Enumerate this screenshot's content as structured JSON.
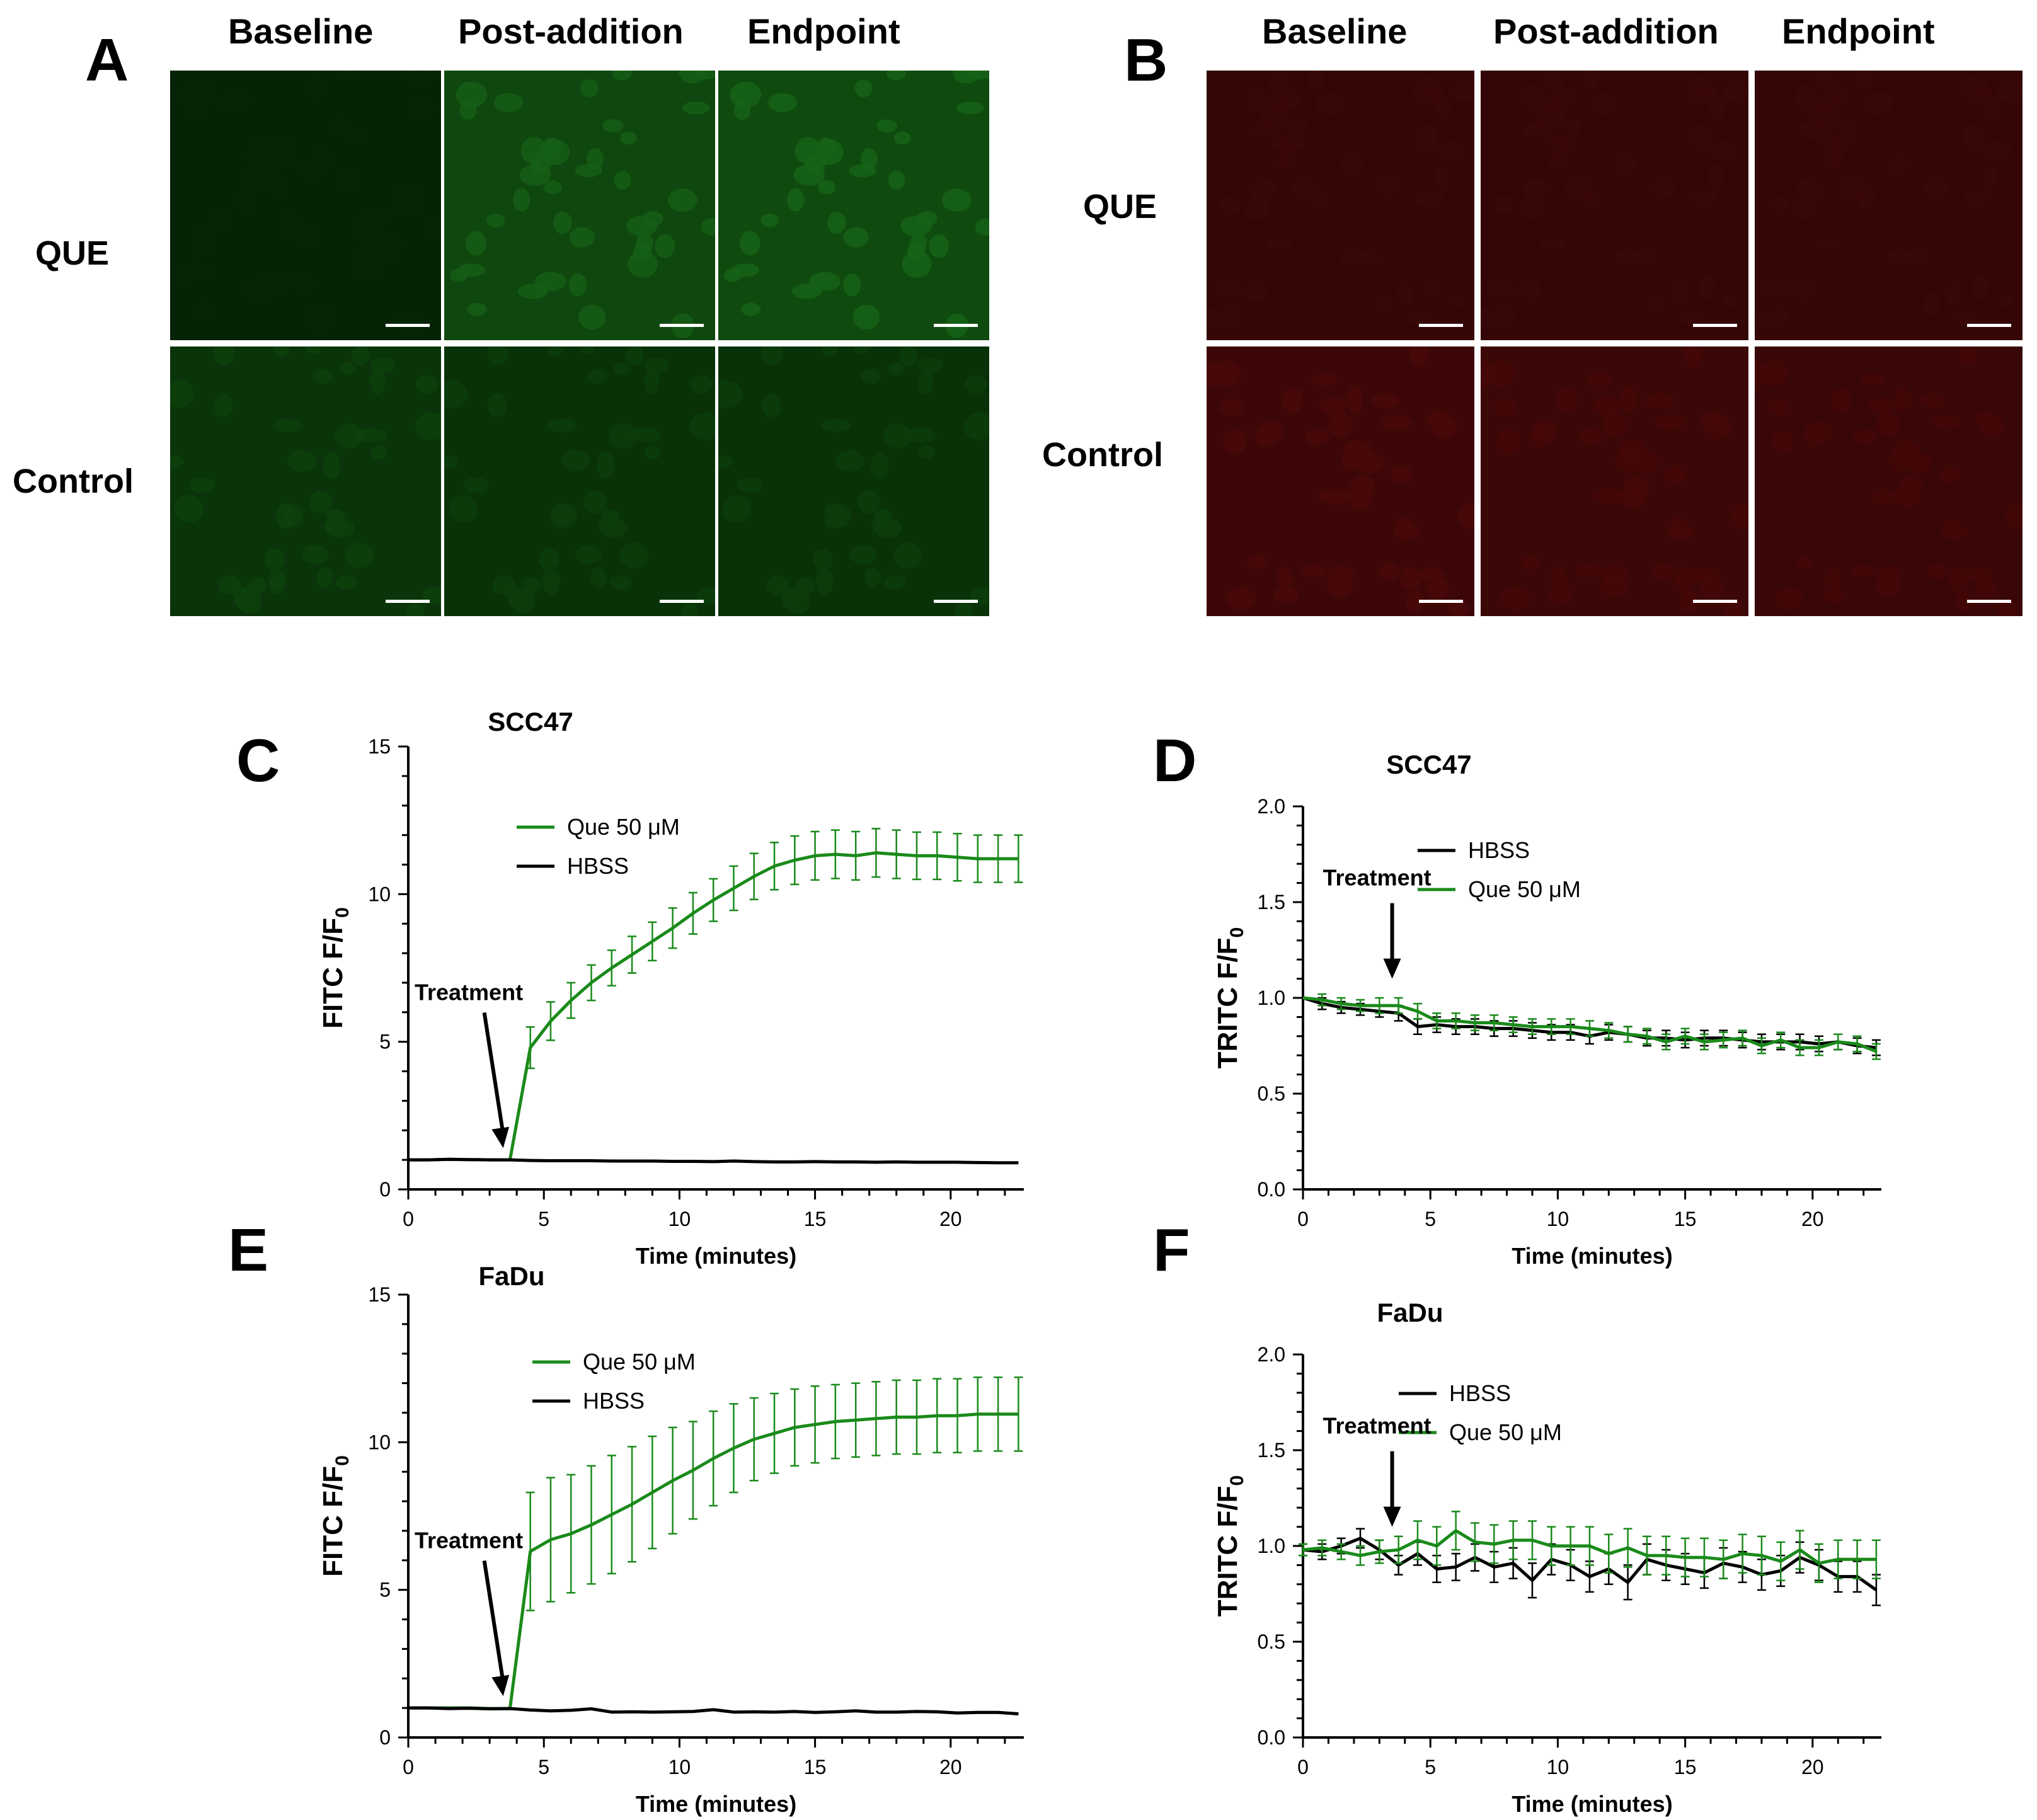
{
  "panels": {
    "A": {
      "letter": "A",
      "columns": [
        "Baseline",
        "Post-addition",
        "Endpoint"
      ],
      "rows": [
        "QUE",
        "Control"
      ],
      "channel": "FITC",
      "color": "#1fb51f"
    },
    "B": {
      "letter": "B",
      "columns": [
        "Baseline",
        "Post-addition",
        "Endpoint"
      ],
      "rows": [
        "QUE",
        "Control"
      ],
      "channel": "TRITC",
      "color": "#c41414"
    }
  },
  "micrograph_brightness": {
    "A": [
      [
        0.1,
        0.85,
        0.9
      ],
      [
        0.45,
        0.4,
        0.4
      ]
    ],
    "B": [
      [
        0.3,
        0.3,
        0.3
      ],
      [
        0.55,
        0.5,
        0.45
      ]
    ]
  },
  "chart_data": [
    {
      "id": "C",
      "letter": "C",
      "type": "line",
      "title": "SCC47",
      "xlabel": "Time (minutes)",
      "ylabel_main": "FITC F/F",
      "ylabel_sub": "0",
      "xlim": [
        0,
        22.7
      ],
      "ylim": [
        0,
        15
      ],
      "xticks": [
        0,
        5,
        10,
        15,
        20
      ],
      "yticks": [
        0,
        5,
        10,
        15
      ],
      "ytick_labels": [
        "0",
        "5",
        "10",
        "15"
      ],
      "annotation": {
        "text": "Treatment",
        "x": 3.5
      },
      "legend": [
        "Que 50 μM",
        "HBSS"
      ],
      "series": [
        {
          "name": "Que 50 μM",
          "color": "#1a8a1a",
          "x": [
            0,
            0.75,
            1.5,
            2.25,
            3,
            3.75,
            4.5,
            5.25,
            6,
            6.75,
            7.5,
            8.25,
            9,
            9.75,
            10.5,
            11.25,
            12,
            12.75,
            13.5,
            14.25,
            15,
            15.75,
            16.5,
            17.25,
            18,
            18.75,
            19.5,
            20.25,
            21,
            21.75,
            22.5
          ],
          "y": [
            1,
            1,
            1.02,
            1.01,
            1,
            1,
            4.8,
            5.7,
            6.4,
            7.0,
            7.5,
            7.95,
            8.4,
            8.85,
            9.35,
            9.8,
            10.2,
            10.6,
            10.95,
            11.15,
            11.3,
            11.35,
            11.3,
            11.4,
            11.35,
            11.3,
            11.3,
            11.25,
            11.2,
            11.2,
            11.2
          ],
          "err": [
            0,
            0,
            0,
            0,
            0,
            0,
            0.7,
            0.65,
            0.6,
            0.6,
            0.6,
            0.62,
            0.65,
            0.68,
            0.7,
            0.72,
            0.75,
            0.78,
            0.8,
            0.82,
            0.82,
            0.82,
            0.82,
            0.82,
            0.82,
            0.8,
            0.8,
            0.8,
            0.8,
            0.8,
            0.8
          ]
        },
        {
          "name": "HBSS",
          "color": "#000000",
          "x": [
            0,
            0.75,
            1.5,
            2.25,
            3,
            3.75,
            4.5,
            5.25,
            6,
            6.75,
            7.5,
            8.25,
            9,
            9.75,
            10.5,
            11.25,
            12,
            12.75,
            13.5,
            14.25,
            15,
            15.75,
            16.5,
            17.25,
            18,
            18.75,
            19.5,
            20.25,
            21,
            21.75,
            22.5
          ],
          "y": [
            1,
            1,
            1.02,
            1.01,
            1,
            1,
            0.98,
            0.97,
            0.97,
            0.97,
            0.96,
            0.96,
            0.96,
            0.95,
            0.95,
            0.94,
            0.96,
            0.94,
            0.93,
            0.93,
            0.94,
            0.93,
            0.93,
            0.92,
            0.93,
            0.92,
            0.92,
            0.92,
            0.91,
            0.9,
            0.9
          ],
          "err": []
        }
      ]
    },
    {
      "id": "D",
      "letter": "D",
      "type": "line",
      "title": "SCC47",
      "xlabel": "Time (minutes)",
      "ylabel_main": "TRITC F/F",
      "ylabel_sub": "0",
      "xlim": [
        0,
        22.7
      ],
      "ylim": [
        0,
        2.0
      ],
      "xticks": [
        0,
        5,
        10,
        15,
        20
      ],
      "yticks": [
        0,
        0.5,
        1.0,
        1.5,
        2.0
      ],
      "ytick_labels": [
        "0.0",
        "0.5",
        "1.0",
        "1.5",
        "2.0"
      ],
      "annotation": {
        "text": "Treatment",
        "x": 3.5
      },
      "legend": [
        "HBSS",
        "Que 50 μM"
      ],
      "series": [
        {
          "name": "HBSS",
          "color": "#000000",
          "x": [
            0,
            0.75,
            1.5,
            2.25,
            3,
            3.75,
            4.5,
            5.25,
            6,
            6.75,
            7.5,
            8.25,
            9,
            9.75,
            10.5,
            11.25,
            12,
            12.75,
            13.5,
            14.25,
            15,
            15.75,
            16.5,
            17.25,
            18,
            18.75,
            19.5,
            20.25,
            21,
            21.75,
            22.5
          ],
          "y": [
            1,
            0.97,
            0.95,
            0.94,
            0.93,
            0.92,
            0.85,
            0.86,
            0.85,
            0.85,
            0.84,
            0.84,
            0.83,
            0.82,
            0.82,
            0.8,
            0.82,
            0.81,
            0.79,
            0.79,
            0.78,
            0.79,
            0.79,
            0.78,
            0.77,
            0.77,
            0.77,
            0.76,
            0.77,
            0.75,
            0.74
          ],
          "err": [
            0,
            0.03,
            0.03,
            0.03,
            0.03,
            0.04,
            0.04,
            0.04,
            0.04,
            0.04,
            0.04,
            0.04,
            0.04,
            0.04,
            0.04,
            0.04,
            0.04,
            0.04,
            0.04,
            0.04,
            0.04,
            0.04,
            0.04,
            0.04,
            0.04,
            0.04,
            0.04,
            0.04,
            0.04,
            0.04,
            0.04
          ]
        },
        {
          "name": "Que 50 μM",
          "color": "#1a8a1a",
          "x": [
            0,
            0.75,
            1.5,
            2.25,
            3,
            3.75,
            4.5,
            5.25,
            6,
            6.75,
            7.5,
            8.25,
            9,
            9.75,
            10.5,
            11.25,
            12,
            12.75,
            13.5,
            14.25,
            15,
            15.75,
            16.5,
            17.25,
            18,
            18.75,
            19.5,
            20.25,
            21,
            21.75,
            22.5
          ],
          "y": [
            1,
            0.99,
            0.97,
            0.96,
            0.96,
            0.96,
            0.93,
            0.88,
            0.88,
            0.87,
            0.87,
            0.86,
            0.85,
            0.85,
            0.85,
            0.84,
            0.83,
            0.81,
            0.8,
            0.77,
            0.8,
            0.77,
            0.78,
            0.79,
            0.75,
            0.78,
            0.74,
            0.74,
            0.77,
            0.76,
            0.72
          ],
          "err": [
            0,
            0.03,
            0.03,
            0.03,
            0.04,
            0.04,
            0.04,
            0.04,
            0.04,
            0.04,
            0.04,
            0.04,
            0.04,
            0.04,
            0.04,
            0.04,
            0.04,
            0.04,
            0.04,
            0.04,
            0.04,
            0.04,
            0.04,
            0.04,
            0.04,
            0.04,
            0.04,
            0.04,
            0.04,
            0.04,
            0.04
          ]
        }
      ]
    },
    {
      "id": "E",
      "letter": "E",
      "type": "line",
      "title": "FaDu",
      "xlabel": "Time (minutes)",
      "ylabel_main": "FITC F/F",
      "ylabel_sub": "0",
      "xlim": [
        0,
        22.7
      ],
      "ylim": [
        0,
        15
      ],
      "xticks": [
        0,
        5,
        10,
        15,
        20
      ],
      "yticks": [
        0,
        5,
        10,
        15
      ],
      "ytick_labels": [
        "0",
        "5",
        "10",
        "15"
      ],
      "annotation": {
        "text": "Treatment",
        "x": 3.5
      },
      "legend": [
        "Que 50 μM",
        "HBSS"
      ],
      "series": [
        {
          "name": "Que 50 μM",
          "color": "#1a8a1a",
          "x": [
            0,
            0.75,
            1.5,
            2.25,
            3,
            3.75,
            4.5,
            5.25,
            6,
            6.75,
            7.5,
            8.25,
            9,
            9.75,
            10.5,
            11.25,
            12,
            12.75,
            13.5,
            14.25,
            15,
            15.75,
            16.5,
            17.25,
            18,
            18.75,
            19.5,
            20.25,
            21,
            21.75,
            22.5
          ],
          "y": [
            1,
            1,
            1,
            1,
            0.98,
            0.98,
            6.3,
            6.7,
            6.9,
            7.2,
            7.55,
            7.9,
            8.3,
            8.7,
            9.05,
            9.45,
            9.8,
            10.1,
            10.3,
            10.5,
            10.6,
            10.7,
            10.75,
            10.8,
            10.85,
            10.85,
            10.9,
            10.9,
            10.95,
            10.95,
            10.95
          ],
          "err": [
            0,
            0,
            0,
            0,
            0,
            0,
            2.0,
            2.1,
            2.0,
            2.0,
            2.0,
            1.95,
            1.9,
            1.8,
            1.65,
            1.6,
            1.5,
            1.4,
            1.35,
            1.3,
            1.3,
            1.25,
            1.25,
            1.25,
            1.25,
            1.25,
            1.25,
            1.25,
            1.25,
            1.25,
            1.25
          ]
        },
        {
          "name": "HBSS",
          "color": "#000000",
          "x": [
            0,
            0.75,
            1.5,
            2.25,
            3,
            3.75,
            4.5,
            5.25,
            6,
            6.75,
            7.5,
            8.25,
            9,
            9.75,
            10.5,
            11.25,
            12,
            12.75,
            13.5,
            14.25,
            15,
            15.75,
            16.5,
            17.25,
            18,
            18.75,
            19.5,
            20.25,
            21,
            21.75,
            22.5
          ],
          "y": [
            1,
            1,
            0.98,
            0.99,
            0.97,
            0.98,
            0.93,
            0.9,
            0.92,
            0.97,
            0.86,
            0.87,
            0.86,
            0.87,
            0.88,
            0.94,
            0.86,
            0.87,
            0.86,
            0.88,
            0.85,
            0.87,
            0.9,
            0.86,
            0.86,
            0.88,
            0.87,
            0.83,
            0.85,
            0.85,
            0.8
          ],
          "err": []
        }
      ]
    },
    {
      "id": "F",
      "letter": "F",
      "type": "line",
      "title": "FaDu",
      "xlabel": "Time (minutes)",
      "ylabel_main": "TRITC F/F",
      "ylabel_sub": "0",
      "xlim": [
        0,
        22.7
      ],
      "ylim": [
        0,
        2.0
      ],
      "xticks": [
        0,
        5,
        10,
        15,
        20
      ],
      "yticks": [
        0,
        0.5,
        1.0,
        1.5,
        2.0
      ],
      "ytick_labels": [
        "0.0",
        "0.5",
        "1.0",
        "1.5",
        "2.0"
      ],
      "annotation": {
        "text": "Treatment",
        "x": 3.5
      },
      "legend": [
        "HBSS",
        "Que 50 μM"
      ],
      "series": [
        {
          "name": "HBSS",
          "color": "#000000",
          "x": [
            0,
            0.75,
            1.5,
            2.25,
            3,
            3.75,
            4.5,
            5.25,
            6,
            6.75,
            7.5,
            8.25,
            9,
            9.75,
            10.5,
            11.25,
            12,
            12.75,
            13.5,
            14.25,
            15,
            15.75,
            16.5,
            17.25,
            18,
            18.75,
            19.5,
            20.25,
            21,
            21.75,
            22.5
          ],
          "y": [
            0.98,
            0.97,
            1.0,
            1.04,
            0.98,
            0.9,
            0.96,
            0.88,
            0.89,
            0.94,
            0.89,
            0.91,
            0.82,
            0.93,
            0.9,
            0.84,
            0.88,
            0.81,
            0.93,
            0.9,
            0.88,
            0.86,
            0.91,
            0.89,
            0.85,
            0.87,
            0.94,
            0.9,
            0.84,
            0.84,
            0.77
          ],
          "err": [
            0.03,
            0.04,
            0.04,
            0.05,
            0.05,
            0.05,
            0.06,
            0.07,
            0.07,
            0.07,
            0.08,
            0.08,
            0.09,
            0.08,
            0.08,
            0.08,
            0.08,
            0.09,
            0.08,
            0.08,
            0.08,
            0.08,
            0.08,
            0.08,
            0.08,
            0.08,
            0.08,
            0.08,
            0.08,
            0.08,
            0.08
          ]
        },
        {
          "name": "Que 50 μM",
          "color": "#1a8a1a",
          "x": [
            0,
            0.75,
            1.5,
            2.25,
            3,
            3.75,
            4.5,
            5.25,
            6,
            6.75,
            7.5,
            8.25,
            9,
            9.75,
            10.5,
            11.25,
            12,
            12.75,
            13.5,
            14.25,
            15,
            15.75,
            16.5,
            17.25,
            18,
            18.75,
            19.5,
            20.25,
            21,
            21.75,
            22.5
          ],
          "y": [
            0.98,
            0.99,
            0.97,
            0.95,
            0.97,
            0.98,
            1.03,
            1.0,
            1.08,
            1.02,
            1.01,
            1.03,
            1.03,
            1.0,
            1.0,
            1.0,
            0.96,
            0.99,
            0.95,
            0.95,
            0.94,
            0.94,
            0.93,
            0.96,
            0.95,
            0.92,
            0.98,
            0.91,
            0.93,
            0.93,
            0.93
          ],
          "err": [
            0.03,
            0.04,
            0.04,
            0.05,
            0.06,
            0.07,
            0.1,
            0.1,
            0.1,
            0.1,
            0.1,
            0.1,
            0.1,
            0.1,
            0.1,
            0.1,
            0.1,
            0.1,
            0.1,
            0.1,
            0.1,
            0.1,
            0.1,
            0.1,
            0.1,
            0.1,
            0.1,
            0.1,
            0.1,
            0.1,
            0.1
          ]
        }
      ]
    }
  ]
}
